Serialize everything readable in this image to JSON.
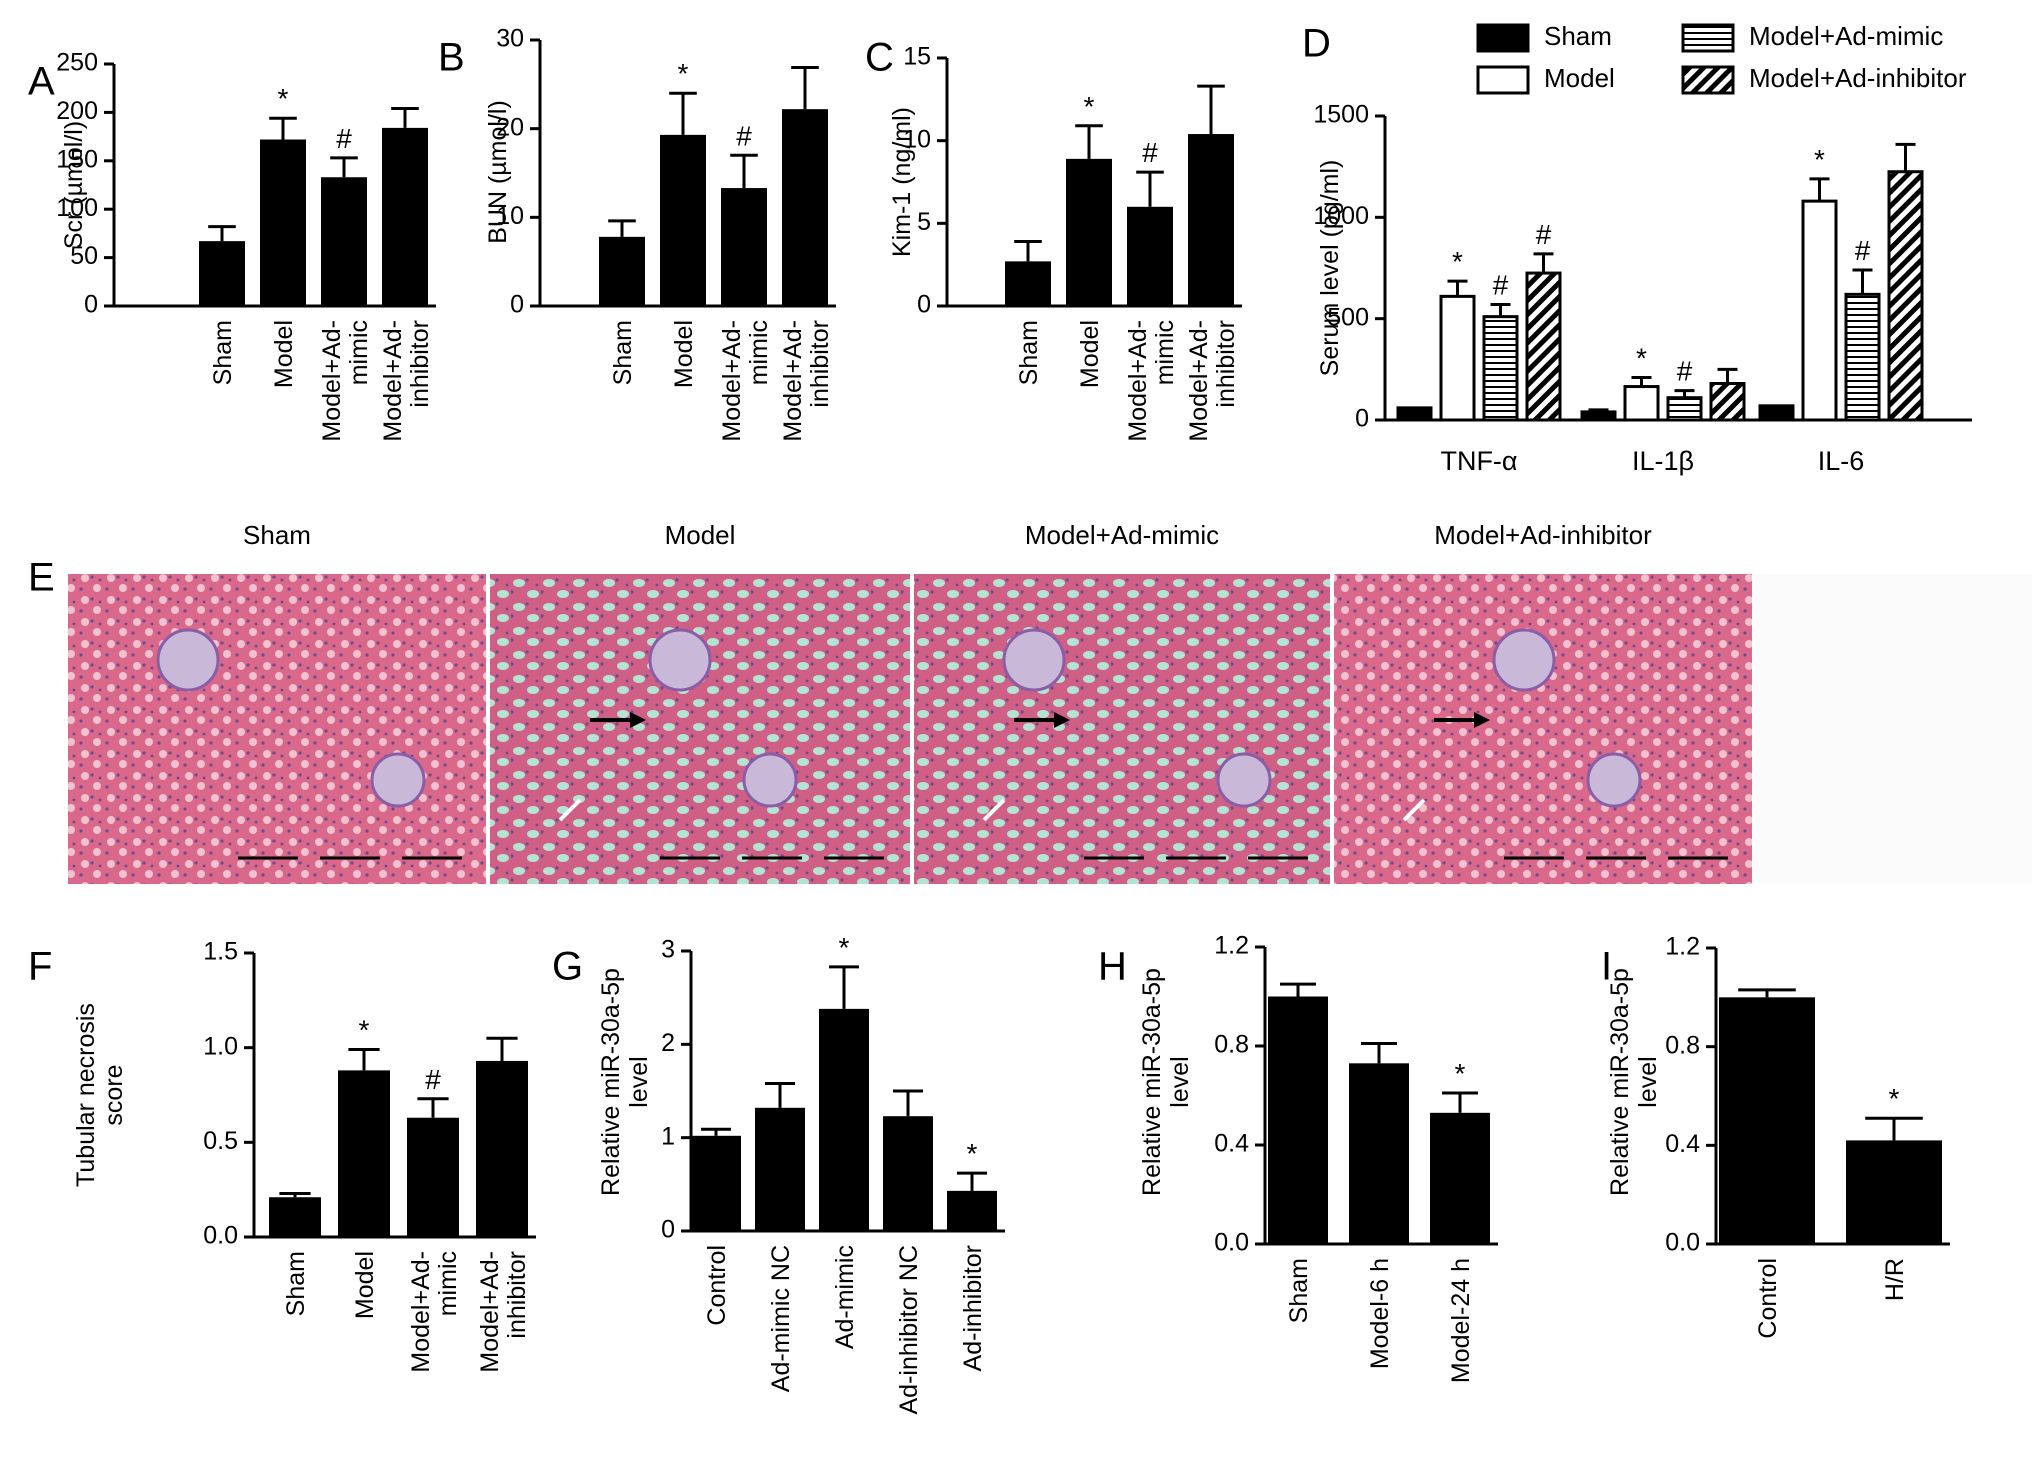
{
  "figure": {
    "panel_e": {
      "letter": "E",
      "captions": [
        "Sham",
        "Model",
        "Model+Ad-mimic",
        "Model+Ad-inhibitor"
      ]
    },
    "colors": {
      "bar": "#000000",
      "text": "#000000",
      "tissue_pink": "#d9688a",
      "tissue_green": "#a8e0cf",
      "tissue_purple": "#7a4f95"
    }
  },
  "chart_data": [
    {
      "id": "A",
      "type": "bar",
      "letter": "A",
      "categories": [
        "Sham",
        "Model",
        "Model+Ad-\nmimic",
        "Model+Ad-\ninhibitor"
      ],
      "values": [
        67,
        172,
        133,
        184
      ],
      "errors": [
        15,
        22,
        20,
        20
      ],
      "marks": [
        "",
        "*",
        "#",
        ""
      ],
      "ylabel": "Scr (µmol/l)",
      "ylim": [
        0,
        250
      ],
      "yticks": [
        0,
        50,
        100,
        150,
        200,
        250
      ],
      "ytick_labels": [
        "0",
        "50",
        "100",
        "150",
        "200",
        "250"
      ]
    },
    {
      "id": "B",
      "type": "bar",
      "letter": "B",
      "categories": [
        "Sham",
        "Model",
        "Model+Ad-\nmimic",
        "Model+Ad-\ninhibitor"
      ],
      "values": [
        7.8,
        19.3,
        13.3,
        22.2
      ],
      "errors": [
        1.8,
        4.7,
        3.7,
        4.7
      ],
      "marks": [
        "",
        "*",
        "#",
        ""
      ],
      "ylabel": "BUN (µmol/l)",
      "ylim": [
        0,
        30
      ],
      "yticks": [
        0,
        10,
        20,
        30
      ],
      "ytick_labels": [
        "0",
        "10",
        "20",
        "30"
      ]
    },
    {
      "id": "C",
      "type": "bar",
      "letter": "C",
      "categories": [
        "Sham",
        "Model",
        "Model+Ad-\nmimic",
        "Model+Ad-\ninhibitor"
      ],
      "values": [
        2.7,
        8.9,
        6.0,
        10.4
      ],
      "errors": [
        1.2,
        2.0,
        2.1,
        2.9
      ],
      "marks": [
        "",
        "*",
        "#",
        ""
      ],
      "ylabel": "Kim-1 (ng/ml)",
      "ylim": [
        0,
        15
      ],
      "yticks": [
        0,
        5,
        10,
        15
      ],
      "ytick_labels": [
        "0",
        "5",
        "10",
        "15"
      ]
    },
    {
      "id": "D",
      "type": "bar",
      "letter": "D",
      "categories": [
        "TNF-α",
        "IL-1β",
        "IL-6"
      ],
      "series": [
        {
          "name": "Sham",
          "pattern": "solid",
          "values": [
            60,
            40,
            70
          ],
          "errors": [
            0,
            10,
            0
          ],
          "marks": [
            "",
            "",
            ""
          ]
        },
        {
          "name": "Model",
          "pattern": "open",
          "values": [
            610,
            165,
            1080
          ],
          "errors": [
            75,
            45,
            110
          ],
          "marks": [
            "*",
            "*",
            "*"
          ]
        },
        {
          "name": "Model+Ad-mimic",
          "pattern": "hlines",
          "values": [
            510,
            110,
            620
          ],
          "errors": [
            60,
            35,
            120
          ],
          "marks": [
            "#",
            "#",
            "#"
          ]
        },
        {
          "name": "Model+Ad-inhibitor",
          "pattern": "diag",
          "values": [
            725,
            180,
            1225
          ],
          "errors": [
            95,
            70,
            135
          ],
          "marks": [
            "#",
            "",
            ""
          ]
        }
      ],
      "ylabel": "Serum level (pg/ml)",
      "ylim": [
        0,
        1500
      ],
      "yticks": [
        0,
        500,
        1000,
        1500
      ],
      "ytick_labels": [
        "0",
        "500",
        "1000",
        "1500"
      ],
      "legend_position": "top"
    },
    {
      "id": "F",
      "type": "bar",
      "letter": "F",
      "categories": [
        "Sham",
        "Model",
        "Model+Ad-\nmimic",
        "Model+Ad-\ninhibitor"
      ],
      "values": [
        0.21,
        0.88,
        0.63,
        0.93
      ],
      "errors": [
        0.02,
        0.11,
        0.1,
        0.12
      ],
      "marks": [
        "",
        "*",
        "#",
        ""
      ],
      "ylabel": "Tubular necrosis\nscore",
      "ylim": [
        0,
        1.5
      ],
      "yticks": [
        0,
        0.5,
        1.0,
        1.5
      ],
      "ytick_labels": [
        "0.0",
        "0.5",
        "1.0",
        "1.5"
      ]
    },
    {
      "id": "G",
      "type": "bar",
      "letter": "G",
      "categories": [
        "Control",
        "Ad-mimic NC",
        "Ad-mimic",
        "Ad-inhibitor NC",
        "Ad-inhibitor"
      ],
      "values": [
        1.02,
        1.32,
        2.38,
        1.23,
        0.43
      ],
      "errors": [
        0.07,
        0.26,
        0.45,
        0.27,
        0.19
      ],
      "marks": [
        "",
        "",
        "*",
        "",
        "*"
      ],
      "ylabel": "Relative miR-30a-5p\nlevel",
      "ylim": [
        0,
        3
      ],
      "yticks": [
        0,
        1,
        2,
        3
      ],
      "ytick_labels": [
        "0",
        "1",
        "2",
        "3"
      ]
    },
    {
      "id": "H",
      "type": "bar",
      "letter": "H",
      "categories": [
        "Sham",
        "Model-6 h",
        "Model-24 h"
      ],
      "values": [
        1.0,
        0.73,
        0.53
      ],
      "errors": [
        0.05,
        0.08,
        0.08
      ],
      "marks": [
        "",
        "",
        "*"
      ],
      "ylabel": "Relative miR-30a-5p\nlevel",
      "ylim": [
        0,
        1.2
      ],
      "yticks": [
        0,
        0.4,
        0.8,
        1.2
      ],
      "ytick_labels": [
        "0.0",
        "0.4",
        "0.8",
        "1.2"
      ]
    },
    {
      "id": "I",
      "type": "bar",
      "letter": "I",
      "categories": [
        "Control",
        "H/R"
      ],
      "values": [
        1.0,
        0.42
      ],
      "errors": [
        0.03,
        0.09
      ],
      "marks": [
        "",
        "*"
      ],
      "ylabel": "Relative miR-30a-5p\nlevel",
      "ylim": [
        0,
        1.2
      ],
      "yticks": [
        0,
        0.4,
        0.8,
        1.2
      ],
      "ytick_labels": [
        "0.0",
        "0.4",
        "0.8",
        "1.2"
      ]
    }
  ]
}
